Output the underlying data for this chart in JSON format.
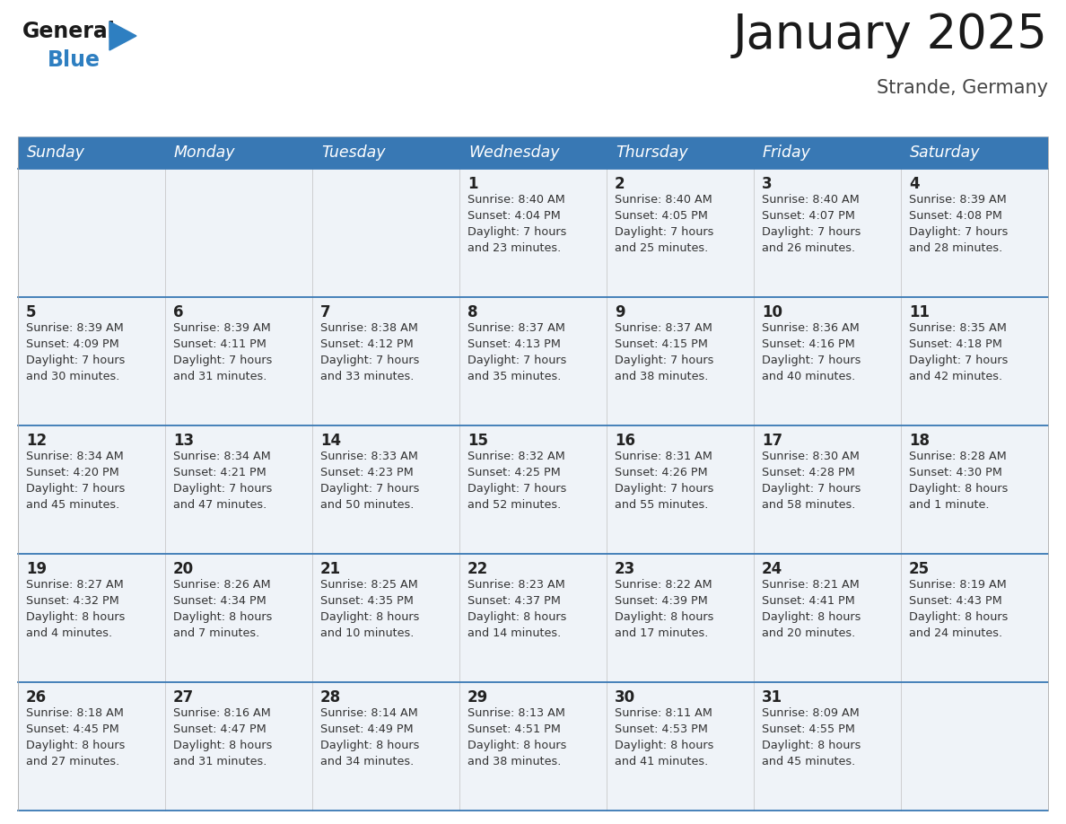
{
  "title": "January 2025",
  "subtitle": "Strande, Germany",
  "header_color": "#3878b4",
  "header_text_color": "#ffffff",
  "cell_bg": "#eff3f8",
  "day_number_color": "#222222",
  "info_text_color": "#333333",
  "line_color": "#3878b4",
  "weekdays": [
    "Sunday",
    "Monday",
    "Tuesday",
    "Wednesday",
    "Thursday",
    "Friday",
    "Saturday"
  ],
  "weeks": [
    [
      {
        "day": null,
        "info": ""
      },
      {
        "day": null,
        "info": ""
      },
      {
        "day": null,
        "info": ""
      },
      {
        "day": 1,
        "info": "Sunrise: 8:40 AM\nSunset: 4:04 PM\nDaylight: 7 hours\nand 23 minutes."
      },
      {
        "day": 2,
        "info": "Sunrise: 8:40 AM\nSunset: 4:05 PM\nDaylight: 7 hours\nand 25 minutes."
      },
      {
        "day": 3,
        "info": "Sunrise: 8:40 AM\nSunset: 4:07 PM\nDaylight: 7 hours\nand 26 minutes."
      },
      {
        "day": 4,
        "info": "Sunrise: 8:39 AM\nSunset: 4:08 PM\nDaylight: 7 hours\nand 28 minutes."
      }
    ],
    [
      {
        "day": 5,
        "info": "Sunrise: 8:39 AM\nSunset: 4:09 PM\nDaylight: 7 hours\nand 30 minutes."
      },
      {
        "day": 6,
        "info": "Sunrise: 8:39 AM\nSunset: 4:11 PM\nDaylight: 7 hours\nand 31 minutes."
      },
      {
        "day": 7,
        "info": "Sunrise: 8:38 AM\nSunset: 4:12 PM\nDaylight: 7 hours\nand 33 minutes."
      },
      {
        "day": 8,
        "info": "Sunrise: 8:37 AM\nSunset: 4:13 PM\nDaylight: 7 hours\nand 35 minutes."
      },
      {
        "day": 9,
        "info": "Sunrise: 8:37 AM\nSunset: 4:15 PM\nDaylight: 7 hours\nand 38 minutes."
      },
      {
        "day": 10,
        "info": "Sunrise: 8:36 AM\nSunset: 4:16 PM\nDaylight: 7 hours\nand 40 minutes."
      },
      {
        "day": 11,
        "info": "Sunrise: 8:35 AM\nSunset: 4:18 PM\nDaylight: 7 hours\nand 42 minutes."
      }
    ],
    [
      {
        "day": 12,
        "info": "Sunrise: 8:34 AM\nSunset: 4:20 PM\nDaylight: 7 hours\nand 45 minutes."
      },
      {
        "day": 13,
        "info": "Sunrise: 8:34 AM\nSunset: 4:21 PM\nDaylight: 7 hours\nand 47 minutes."
      },
      {
        "day": 14,
        "info": "Sunrise: 8:33 AM\nSunset: 4:23 PM\nDaylight: 7 hours\nand 50 minutes."
      },
      {
        "day": 15,
        "info": "Sunrise: 8:32 AM\nSunset: 4:25 PM\nDaylight: 7 hours\nand 52 minutes."
      },
      {
        "day": 16,
        "info": "Sunrise: 8:31 AM\nSunset: 4:26 PM\nDaylight: 7 hours\nand 55 minutes."
      },
      {
        "day": 17,
        "info": "Sunrise: 8:30 AM\nSunset: 4:28 PM\nDaylight: 7 hours\nand 58 minutes."
      },
      {
        "day": 18,
        "info": "Sunrise: 8:28 AM\nSunset: 4:30 PM\nDaylight: 8 hours\nand 1 minute."
      }
    ],
    [
      {
        "day": 19,
        "info": "Sunrise: 8:27 AM\nSunset: 4:32 PM\nDaylight: 8 hours\nand 4 minutes."
      },
      {
        "day": 20,
        "info": "Sunrise: 8:26 AM\nSunset: 4:34 PM\nDaylight: 8 hours\nand 7 minutes."
      },
      {
        "day": 21,
        "info": "Sunrise: 8:25 AM\nSunset: 4:35 PM\nDaylight: 8 hours\nand 10 minutes."
      },
      {
        "day": 22,
        "info": "Sunrise: 8:23 AM\nSunset: 4:37 PM\nDaylight: 8 hours\nand 14 minutes."
      },
      {
        "day": 23,
        "info": "Sunrise: 8:22 AM\nSunset: 4:39 PM\nDaylight: 8 hours\nand 17 minutes."
      },
      {
        "day": 24,
        "info": "Sunrise: 8:21 AM\nSunset: 4:41 PM\nDaylight: 8 hours\nand 20 minutes."
      },
      {
        "day": 25,
        "info": "Sunrise: 8:19 AM\nSunset: 4:43 PM\nDaylight: 8 hours\nand 24 minutes."
      }
    ],
    [
      {
        "day": 26,
        "info": "Sunrise: 8:18 AM\nSunset: 4:45 PM\nDaylight: 8 hours\nand 27 minutes."
      },
      {
        "day": 27,
        "info": "Sunrise: 8:16 AM\nSunset: 4:47 PM\nDaylight: 8 hours\nand 31 minutes."
      },
      {
        "day": 28,
        "info": "Sunrise: 8:14 AM\nSunset: 4:49 PM\nDaylight: 8 hours\nand 34 minutes."
      },
      {
        "day": 29,
        "info": "Sunrise: 8:13 AM\nSunset: 4:51 PM\nDaylight: 8 hours\nand 38 minutes."
      },
      {
        "day": 30,
        "info": "Sunrise: 8:11 AM\nSunset: 4:53 PM\nDaylight: 8 hours\nand 41 minutes."
      },
      {
        "day": 31,
        "info": "Sunrise: 8:09 AM\nSunset: 4:55 PM\nDaylight: 8 hours\nand 45 minutes."
      },
      {
        "day": null,
        "info": ""
      }
    ]
  ],
  "logo_color1": "#1a1a1a",
  "logo_color2": "#2e7fc1",
  "title_fontsize": 38,
  "subtitle_fontsize": 15,
  "header_fontsize": 12.5,
  "day_num_fontsize": 12,
  "info_fontsize": 9.2
}
